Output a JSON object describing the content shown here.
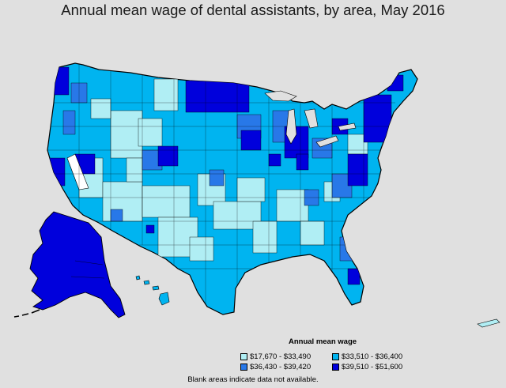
{
  "title": "Annual mean wage of dental assistants, by area, May 2016",
  "legend": {
    "title": "Annual mean wage",
    "items": [
      {
        "label": "$17,670 - $33,490",
        "color": "#b0eef4"
      },
      {
        "label": "$33,510 - $36,400",
        "color": "#00b4f0"
      },
      {
        "label": "$36,430 - $39,420",
        "color": "#2878e8"
      },
      {
        "label": "$39,510 - $51,600",
        "color": "#0000dc"
      }
    ]
  },
  "footnote": "Blank areas indicate data not available.",
  "colors": {
    "background": "#e0e0e0",
    "no_data": "#ffffff",
    "border": "#000000"
  }
}
